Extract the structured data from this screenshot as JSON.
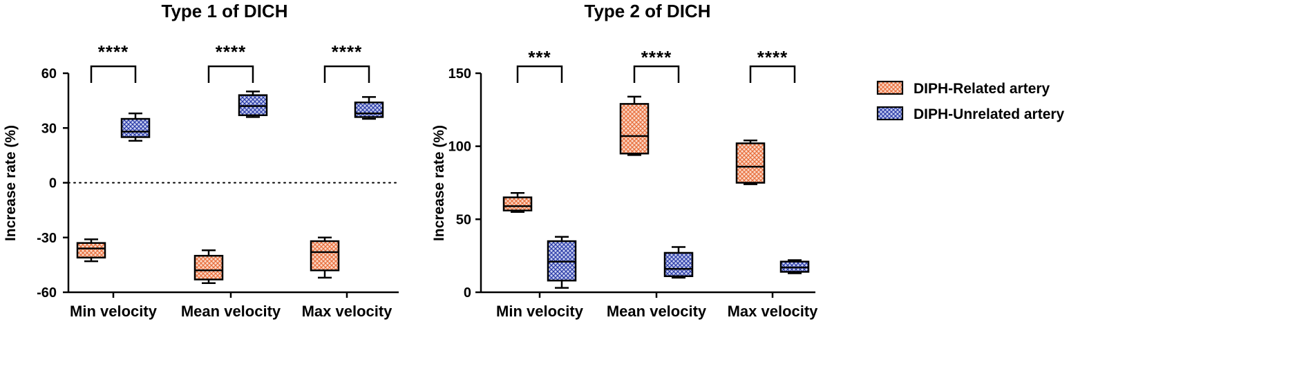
{
  "legend": [
    {
      "label": "DIPH-Related artery",
      "pattern": "pat-related",
      "color": "#f08a5a"
    },
    {
      "label": "DIPH-Unrelated artery",
      "pattern": "pat-unrelated",
      "color": "#3b4fb8"
    }
  ],
  "chart_data": [
    {
      "type": "boxplot",
      "title": "Type 1 of DICH",
      "ylabel": "Increase rate (%)",
      "ylim": [
        -60,
        60
      ],
      "yticks": [
        -60,
        -30,
        0,
        30,
        60
      ],
      "reference_line": 0,
      "categories": [
        "Min velocity",
        "Mean velocity",
        "Max velocity"
      ],
      "series": [
        {
          "name": "DIPH-Related artery",
          "boxes": [
            {
              "min": -43,
              "q1": -41,
              "median": -36,
              "q3": -33,
              "max": -31
            },
            {
              "min": -55,
              "q1": -53,
              "median": -48,
              "q3": -40,
              "max": -37
            },
            {
              "min": -52,
              "q1": -48,
              "median": -38,
              "q3": -32,
              "max": -30
            }
          ]
        },
        {
          "name": "DIPH-Unrelated artery",
          "boxes": [
            {
              "min": 23,
              "q1": 25,
              "median": 28,
              "q3": 35,
              "max": 38
            },
            {
              "min": 36,
              "q1": 37,
              "median": 42,
              "q3": 48,
              "max": 50
            },
            {
              "min": 35,
              "q1": 36,
              "median": 38,
              "q3": 44,
              "max": 47
            }
          ]
        }
      ],
      "significance": [
        "****",
        "****",
        "****"
      ]
    },
    {
      "type": "boxplot",
      "title": "Type 2 of DICH",
      "ylabel": "Increase rate (%)",
      "ylim": [
        0,
        150
      ],
      "yticks": [
        0,
        50,
        100,
        150
      ],
      "reference_line": null,
      "categories": [
        "Min velocity",
        "Mean velocity",
        "Max velocity"
      ],
      "series": [
        {
          "name": "DIPH-Related artery",
          "boxes": [
            {
              "min": 55,
              "q1": 56,
              "median": 59,
              "q3": 65,
              "max": 68
            },
            {
              "min": 94,
              "q1": 95,
              "median": 107,
              "q3": 129,
              "max": 134
            },
            {
              "min": 74,
              "q1": 75,
              "median": 86,
              "q3": 102,
              "max": 104
            }
          ]
        },
        {
          "name": "DIPH-Unrelated artery",
          "boxes": [
            {
              "min": 3,
              "q1": 8,
              "median": 21,
              "q3": 35,
              "max": 38
            },
            {
              "min": 10,
              "q1": 11,
              "median": 16,
              "q3": 27,
              "max": 31
            },
            {
              "min": 13,
              "q1": 14,
              "median": 17,
              "q3": 21,
              "max": 22
            }
          ]
        }
      ],
      "significance": [
        "***",
        "****",
        "****"
      ]
    }
  ]
}
